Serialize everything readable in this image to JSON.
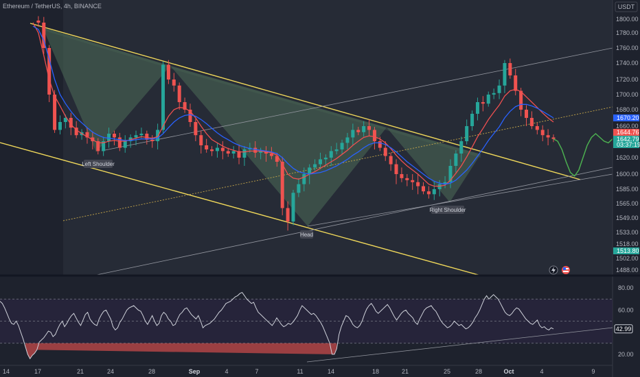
{
  "header": {
    "title": "Ethereum / TetherUS, 4h, BINANCE",
    "currency": "USDT"
  },
  "colors": {
    "background": "#1e222d",
    "up": "#26a69a",
    "down": "#ef5350",
    "trendline": "#f0d85a",
    "channel": "#9598a1",
    "ma_fast": "#f05050",
    "ma_slow": "#2962ff",
    "forecast": "#4caf50",
    "pattern_fill": "#4d6b57",
    "rsi_line": "#d1d4dc",
    "rsi_band": "#2a2540"
  },
  "chart_data": [
    {
      "type": "candlestick",
      "title": "Ethereum / TetherUS, 4h, BINANCE",
      "x_ticks": [
        "14",
        "17",
        "21",
        "24",
        "28",
        "Sep",
        "4",
        "7",
        "11",
        "14",
        "18",
        "21",
        "25",
        "28",
        "Oct",
        "4",
        "9"
      ],
      "y_ticks": [
        1800,
        1780,
        1760,
        1740,
        1720,
        1700,
        1680,
        1660,
        1640,
        1620,
        1600,
        1585,
        1565,
        1549,
        1533,
        1518,
        1502,
        1488
      ],
      "ylim": [
        1488,
        1815
      ],
      "price_series": [
        1798,
        1795,
        1760,
        1700,
        1655,
        1665,
        1670,
        1658,
        1648,
        1652,
        1645,
        1640,
        1628,
        1640,
        1650,
        1645,
        1632,
        1640,
        1645,
        1648,
        1650,
        1642,
        1640,
        1655,
        1738,
        1720,
        1712,
        1690,
        1680,
        1665,
        1648,
        1635,
        1630,
        1628,
        1632,
        1628,
        1625,
        1628,
        1620,
        1630,
        1632,
        1626,
        1628,
        1625,
        1622,
        1615,
        1560,
        1545,
        1580,
        1590,
        1600,
        1608,
        1612,
        1618,
        1620,
        1628,
        1630,
        1638,
        1645,
        1655,
        1652,
        1660,
        1655,
        1640,
        1632,
        1622,
        1612,
        1600,
        1596,
        1594,
        1592,
        1588,
        1582,
        1578,
        1585,
        1590,
        1592,
        1610,
        1625,
        1640,
        1660,
        1675,
        1690,
        1688,
        1700,
        1702,
        1712,
        1740,
        1725,
        1705,
        1680,
        1670,
        1660,
        1655,
        1648,
        1645,
        1643
      ],
      "series": [
        {
          "name": "",
          "values": [
            1795,
            1780,
            1750,
            1720,
            1698,
            1685,
            1672,
            1662,
            1655,
            1650,
            1646,
            1642,
            1638,
            1638,
            1640,
            1641,
            1640,
            1640,
            1642,
            1644,
            1646,
            1645,
            1644,
            1646,
            1660,
            1672,
            1680,
            1683,
            1682,
            1678,
            1670,
            1660,
            1650,
            1642,
            1638,
            1634,
            1631,
            1629,
            1627,
            1627,
            1628,
            1628,
            1628,
            1627,
            1626,
            1623,
            1612,
            1600,
            1596,
            1595,
            1597,
            1600,
            1603,
            1607,
            1611,
            1615,
            1619,
            1624,
            1629,
            1635,
            1640,
            1645,
            1647,
            1646,
            1643,
            1638,
            1631,
            1623,
            1616,
            1610,
            1605,
            1600,
            1595,
            1590,
            1588,
            1588,
            1589,
            1594,
            1601,
            1610,
            1621,
            1633,
            1646,
            1657,
            1668,
            1677,
            1686,
            1698,
            1705,
            1707,
            1704,
            1697,
            1690,
            1683,
            1676,
            1670,
            1665
          ]
        },
        {
          "name": "",
          "values": [
            1790,
            1785,
            1770,
            1745,
            1720,
            1700,
            1688,
            1678,
            1670,
            1664,
            1658,
            1652,
            1648,
            1645,
            1644,
            1643,
            1642,
            1641,
            1641,
            1642,
            1643,
            1643,
            1643,
            1644,
            1650,
            1658,
            1665,
            1670,
            1673,
            1674,
            1672,
            1668,
            1663,
            1657,
            1651,
            1646,
            1642,
            1638,
            1635,
            1633,
            1631,
            1630,
            1629,
            1628,
            1627,
            1625,
            1620,
            1613,
            1607,
            1603,
            1601,
            1600,
            1601,
            1602,
            1604,
            1607,
            1610,
            1614,
            1618,
            1623,
            1627,
            1632,
            1636,
            1638,
            1638,
            1636,
            1632,
            1627,
            1621,
            1615,
            1610,
            1605,
            1600,
            1596,
            1593,
            1591,
            1590,
            1591,
            1594,
            1599,
            1605,
            1613,
            1622,
            1631,
            1641,
            1650,
            1659,
            1670,
            1678,
            1684,
            1687,
            1687,
            1685,
            1682,
            1678,
            1674,
            1670
          ]
        }
      ],
      "forecast": [
        1643,
        1640,
        1630,
        1615,
        1602,
        1598,
        1605,
        1620,
        1635,
        1645,
        1650,
        1645,
        1640,
        1638,
        1643
      ],
      "annotations": [
        "Left Shoulder",
        "Head",
        "Right Shoulder"
      ],
      "price_labels": [
        {
          "text": "1670.20",
          "color": "#2962ff"
        },
        {
          "text": "1644.76",
          "color": "#ef5350"
        },
        {
          "text": "1642.79",
          "color": "#26a69a"
        },
        {
          "text": "03:37:19",
          "color": "#26a69a"
        },
        {
          "text": "1513.80",
          "color": "#26a69a"
        }
      ]
    },
    {
      "type": "line",
      "y_ticks": [
        80.0,
        60.0,
        20.0
      ],
      "ylim": [
        10,
        90
      ],
      "band": [
        30,
        70
      ],
      "current_value": "42.99",
      "values": [
        68,
        66,
        62,
        57,
        52,
        48,
        47,
        50,
        46,
        40,
        34,
        27,
        20,
        16,
        19,
        21,
        24,
        31,
        33,
        35,
        38,
        41,
        40,
        36,
        38,
        43,
        47,
        50,
        45,
        48,
        52,
        55,
        57,
        53,
        49,
        46,
        51,
        56,
        58,
        52,
        49,
        47,
        46,
        52,
        56,
        59,
        60,
        56,
        52,
        45,
        42,
        44,
        49,
        52,
        56,
        60,
        62,
        63,
        64,
        62,
        60,
        59,
        55,
        50,
        47,
        51,
        55,
        50,
        46,
        48,
        55,
        58,
        56,
        52,
        50,
        46,
        47,
        52,
        56,
        58,
        61,
        62,
        59,
        56,
        54,
        52,
        55,
        50,
        44,
        46,
        47,
        48,
        50,
        52,
        55,
        58,
        60,
        63,
        66,
        67,
        68,
        70,
        72,
        73,
        75,
        76,
        73,
        70,
        68,
        66,
        67,
        62,
        58,
        56,
        54,
        52,
        50,
        48,
        46,
        49,
        53,
        50,
        47,
        45,
        46,
        48,
        47,
        49,
        52,
        55,
        60,
        64,
        62,
        60,
        58,
        56,
        57,
        55,
        52,
        49,
        45,
        40,
        35,
        30,
        20,
        20,
        25,
        38,
        45,
        50,
        55,
        54,
        51,
        47,
        45,
        44,
        46,
        50,
        56,
        61,
        64,
        66,
        63,
        59,
        57,
        59,
        61,
        63,
        65,
        62,
        58,
        54,
        51,
        54,
        57,
        59,
        60,
        57,
        55,
        53,
        49,
        47,
        52,
        56,
        60,
        62,
        63,
        64,
        61,
        59,
        55,
        51,
        48,
        46,
        44,
        45,
        47,
        50,
        48,
        46,
        47,
        45,
        43,
        44,
        46,
        49,
        53,
        56,
        60,
        65,
        70,
        73,
        70,
        72,
        74,
        72,
        70,
        66,
        62,
        58,
        56,
        55,
        57,
        60,
        62,
        61,
        58,
        55,
        52,
        50,
        48,
        47,
        49,
        51,
        46,
        44,
        45,
        43,
        42,
        44,
        43
      ]
    }
  ]
}
